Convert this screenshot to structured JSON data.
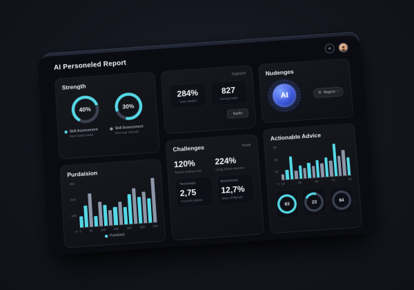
{
  "theme": {
    "accent": "#55d7e5",
    "bar_muted": "#8d96a8",
    "track": "#3a4150",
    "ai_blue": "#4f7dff",
    "avatar_skin": "#e0a984"
  },
  "header": {
    "title": "AI Personeled Report",
    "add_button": "+"
  },
  "strength": {
    "title": "Strength",
    "donuts": [
      {
        "label": "40%",
        "arc": 62,
        "from": 210,
        "legend": "Skill Assessment",
        "sub": "best nped roelet"
      },
      {
        "label": "30%",
        "arc": 85,
        "from": 250,
        "legend": "Skill Assessment",
        "sub": "Mot roqr stroodt"
      }
    ]
  },
  "purdasion": {
    "title": "Purdaision",
    "legend": "Poetdoed",
    "chart": {
      "type": "bar",
      "max": 300,
      "values": [
        75,
        140,
        215,
        70,
        160,
        135,
        100,
        120,
        150,
        115,
        195,
        230,
        170,
        205,
        160,
        290
      ],
      "colors": [
        "a",
        "a",
        "m",
        "a",
        "m",
        "a",
        "m",
        "a",
        "m",
        "a",
        "a",
        "m",
        "a",
        "m",
        "a",
        "m"
      ],
      "y_ticks": [
        "300",
        "200",
        "100",
        "0"
      ],
      "x_ticks": [
        "0",
        "50",
        "100",
        "150",
        "200",
        "250",
        "300"
      ]
    }
  },
  "overview": {
    "tag": "Gognzod",
    "stats": [
      {
        "value": "284%",
        "sub": "Uosr otaties"
      },
      {
        "value": "827",
        "sub": "Avong trotter"
      }
    ],
    "button": "Narfid"
  },
  "challenges": {
    "title": "Challenges",
    "tag": "Postd",
    "stats": [
      {
        "value": "120%",
        "sub": "Toores protnss toot"
      },
      {
        "value": "224%",
        "sub": "Uerig oforss oeunter"
      }
    ],
    "tiles": [
      {
        "label": "Tweeniejse",
        "value": "2,75",
        "sub": "Accemb lylation"
      },
      {
        "label": "Montsetrote",
        "value": "12,7%",
        "sub": "Mary rd flipods"
      }
    ]
  },
  "nudenges": {
    "title": "Nudenges",
    "badge": "AI",
    "pill": "Magnot"
  },
  "advice": {
    "title": "Actionable Advice",
    "chart": {
      "type": "bar",
      "max": 32,
      "values": [
        5,
        9,
        21,
        8,
        12,
        10,
        14,
        11,
        16,
        13,
        18,
        15,
        30,
        19,
        24,
        17
      ],
      "colors": [
        "m",
        "a",
        "a",
        "m",
        "a",
        "m",
        "a",
        "m",
        "a",
        "m",
        "a",
        "m",
        "a",
        "m",
        "m",
        "a"
      ],
      "y_ticks": [
        "30",
        "20",
        "10",
        "0"
      ],
      "x_ticks": [
        "10",
        "30",
        "50",
        "70",
        "90"
      ]
    },
    "rings": [
      {
        "label": "83",
        "arc": 100,
        "from": 0
      },
      {
        "label": "23",
        "arc": 22,
        "from": 300
      },
      {
        "label": "94",
        "arc": 0,
        "from": 0
      }
    ]
  }
}
